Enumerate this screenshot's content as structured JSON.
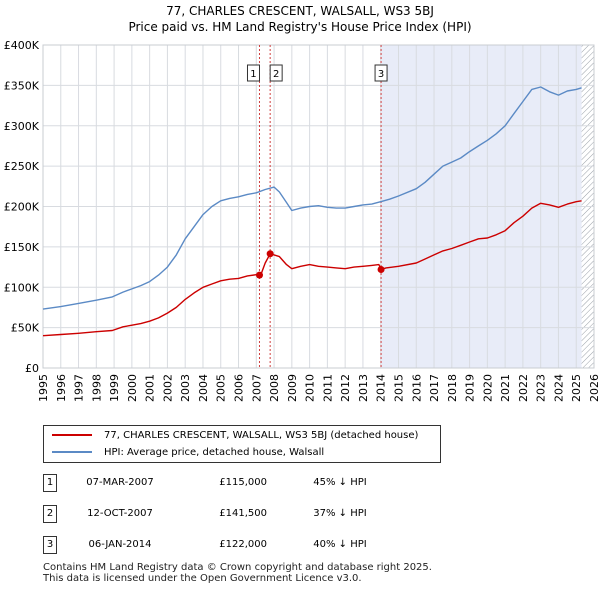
{
  "chart_data": {
    "type": "line",
    "title": "77, CHARLES CRESCENT, WALSALL, WS3 5BJ",
    "subtitle": "Price paid vs. HM Land Registry's House Price Index (HPI)",
    "xlabel": "",
    "ylabel": "",
    "xlim": [
      1995,
      2026
    ],
    "ylim": [
      0,
      400000
    ],
    "x_ticks": [
      "1995",
      "1996",
      "1997",
      "1998",
      "1999",
      "2000",
      "2001",
      "2002",
      "2003",
      "2004",
      "2005",
      "2006",
      "2007",
      "2008",
      "2009",
      "2010",
      "2011",
      "2012",
      "2013",
      "2014",
      "2015",
      "2016",
      "2017",
      "2018",
      "2019",
      "2020",
      "2021",
      "2022",
      "2023",
      "2024",
      "2025",
      "2026"
    ],
    "y_ticks": [
      {
        "value": 0,
        "label": "£0"
      },
      {
        "value": 50000,
        "label": "£50K"
      },
      {
        "value": 100000,
        "label": "£100K"
      },
      {
        "value": 150000,
        "label": "£150K"
      },
      {
        "value": 200000,
        "label": "£200K"
      },
      {
        "value": 250000,
        "label": "£250K"
      },
      {
        "value": 300000,
        "label": "£300K"
      },
      {
        "value": 350000,
        "label": "£350K"
      },
      {
        "value": 400000,
        "label": "£400K"
      }
    ],
    "grid": true,
    "shaded_ranges": [
      {
        "from": 2014.02,
        "to": 2025.3,
        "color": "#e8ecf8"
      },
      {
        "from": 2025.3,
        "to": 2026,
        "hatched": true
      }
    ],
    "series": [
      {
        "name": "77, CHARLES CRESCENT, WALSALL, WS3 5BJ (detached house)",
        "color": "#cc0000",
        "x": [
          1995.0,
          1996.0,
          1997.0,
          1998.0,
          1998.9,
          1999.5,
          2000.0,
          2000.5,
          2001.0,
          2001.5,
          2002.0,
          2002.5,
          2003.0,
          2003.5,
          2004.0,
          2004.5,
          2005.0,
          2005.5,
          2006.0,
          2006.5,
          2007.0,
          2007.18,
          2007.3,
          2007.5,
          2007.78,
          2008.0,
          2008.3,
          2008.7,
          2009.0,
          2009.5,
          2010.0,
          2010.5,
          2011.0,
          2011.5,
          2012.0,
          2012.5,
          2013.0,
          2013.5,
          2013.9,
          2014.02,
          2014.3,
          2015.0,
          2016.0,
          2016.5,
          2017.0,
          2017.5,
          2018.0,
          2018.5,
          2019.0,
          2019.5,
          2020.0,
          2020.5,
          2021.0,
          2021.5,
          2022.0,
          2022.5,
          2023.0,
          2023.5,
          2024.0,
          2024.5,
          2025.0,
          2025.3
        ],
        "values": [
          40000,
          41500,
          43000,
          45000,
          46500,
          51000,
          53000,
          55000,
          58000,
          62000,
          68000,
          75000,
          85000,
          93000,
          100000,
          104000,
          108000,
          110000,
          111000,
          114000,
          115500,
          115000,
          118000,
          130000,
          141500,
          140000,
          138000,
          128000,
          123000,
          126000,
          128000,
          126000,
          125000,
          124000,
          123000,
          125000,
          126000,
          127000,
          128000,
          122000,
          124000,
          126000,
          130000,
          135000,
          140000,
          145000,
          148000,
          152000,
          156000,
          160000,
          161000,
          165000,
          170000,
          180000,
          188000,
          198000,
          204000,
          202000,
          199000,
          203000,
          206000,
          207000
        ]
      },
      {
        "name": "HPI: Average price, detached house, Walsall",
        "color": "#5b8ac5",
        "x": [
          1995.0,
          1996.0,
          1997.0,
          1998.0,
          1998.9,
          1999.5,
          2000.0,
          2000.5,
          2001.0,
          2001.5,
          2002.0,
          2002.5,
          2003.0,
          2003.5,
          2004.0,
          2004.5,
          2005.0,
          2005.5,
          2006.0,
          2006.5,
          2007.0,
          2007.5,
          2008.0,
          2008.3,
          2008.7,
          2009.0,
          2009.5,
          2010.0,
          2010.5,
          2011.0,
          2011.5,
          2012.0,
          2012.5,
          2013.0,
          2013.5,
          2014.0,
          2014.5,
          2015.0,
          2016.0,
          2016.5,
          2017.0,
          2017.5,
          2018.0,
          2018.5,
          2019.0,
          2019.5,
          2020.0,
          2020.5,
          2021.0,
          2021.5,
          2022.0,
          2022.5,
          2023.0,
          2023.5,
          2024.0,
          2024.5,
          2025.0,
          2025.3
        ],
        "values": [
          73000,
          76000,
          80000,
          84000,
          88000,
          94000,
          98000,
          102000,
          107000,
          115000,
          125000,
          140000,
          160000,
          175000,
          190000,
          200000,
          207000,
          210000,
          212000,
          215000,
          217000,
          221000,
          224000,
          218000,
          205000,
          195000,
          198000,
          200000,
          201000,
          199000,
          198000,
          198000,
          200000,
          202000,
          203000,
          206000,
          209000,
          213000,
          222000,
          230000,
          240000,
          250000,
          255000,
          260000,
          268000,
          275000,
          282000,
          290000,
          300000,
          315000,
          330000,
          345000,
          348000,
          342000,
          338000,
          343000,
          345000,
          347000
        ]
      }
    ],
    "markers": [
      {
        "id": "1",
        "x": 2007.18,
        "y": 115000,
        "series": 0
      },
      {
        "id": "2",
        "x": 2007.78,
        "y": 141500,
        "series": 0
      },
      {
        "id": "3",
        "x": 2014.02,
        "y": 122000,
        "series": 0
      }
    ]
  },
  "legend": {
    "property_label": "77, CHARLES CRESCENT, WALSALL, WS3 5BJ (detached house)",
    "hpi_label": "HPI: Average price, detached house, Walsall",
    "property_color": "#cc0000",
    "hpi_color": "#5b8ac5"
  },
  "transactions": [
    {
      "num": "1",
      "date": "07-MAR-2007",
      "price": "£115,000",
      "hpi": "45% ↓ HPI"
    },
    {
      "num": "2",
      "date": "12-OCT-2007",
      "price": "£141,500",
      "hpi": "37% ↓ HPI"
    },
    {
      "num": "3",
      "date": "06-JAN-2014",
      "price": "£122,000",
      "hpi": "40% ↓ HPI"
    }
  ],
  "footer": {
    "line1": "Contains HM Land Registry data © Crown copyright and database right 2025.",
    "line2": "This data is licensed under the Open Government Licence v3.0."
  }
}
